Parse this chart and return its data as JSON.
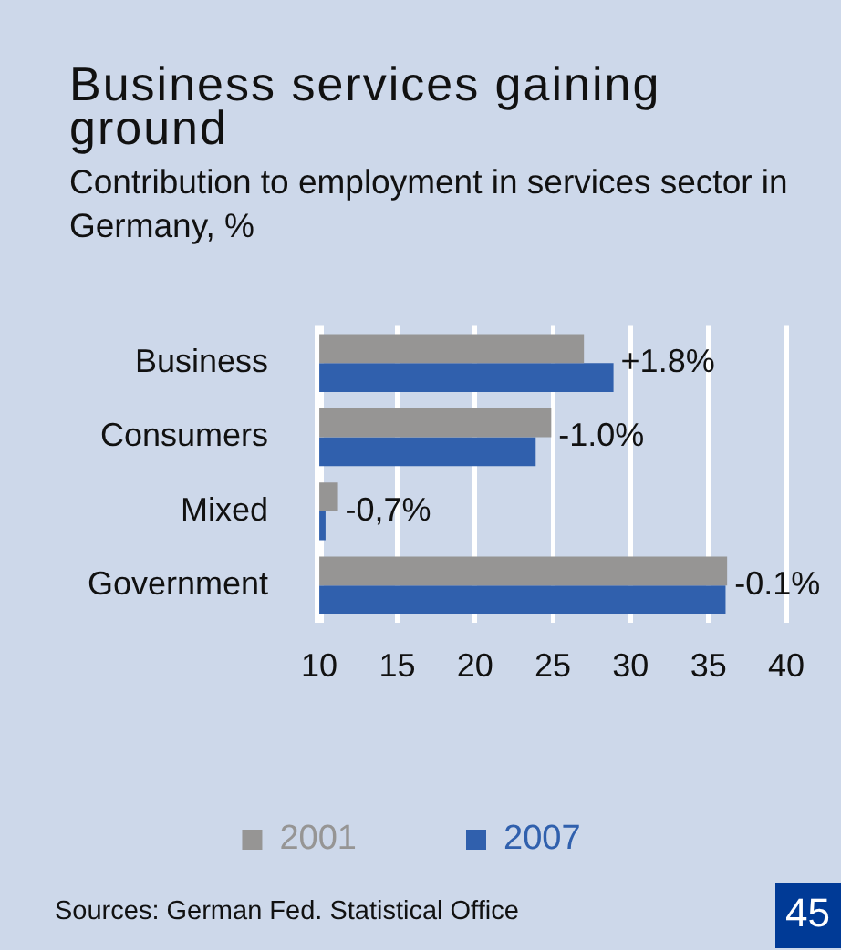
{
  "chart_data": {
    "type": "bar",
    "orientation": "horizontal",
    "title": "Business services gaining ground",
    "subtitle": "Contribution to employment in services sector in Germany, %",
    "categories": [
      "Business",
      "Consumers",
      "Mixed",
      "Government"
    ],
    "series": [
      {
        "name": "2001",
        "color": "#969594",
        "values": [
          27.0,
          24.9,
          11.2,
          36.2
        ]
      },
      {
        "name": "2007",
        "color": "#3060ad",
        "values": [
          28.9,
          23.9,
          10.4,
          36.1
        ]
      }
    ],
    "xlim": [
      10,
      40
    ],
    "xticks": [
      10,
      15,
      20,
      25,
      30,
      35,
      40
    ],
    "grid": "x",
    "legend": "bottom",
    "annotations": [
      {
        "text": "+1.8%",
        "x": 28.9,
        "y": "Business"
      },
      {
        "text": "-1.0%",
        "x": 24.9,
        "y": "Consumers"
      },
      {
        "text": "-0,7%",
        "x": 11.2,
        "y": "Mixed"
      },
      {
        "text": "-0.1%",
        "x": 36.2,
        "y": "Government"
      },
      "Sources: German Fed. Statistical Office",
      "45"
    ]
  }
}
